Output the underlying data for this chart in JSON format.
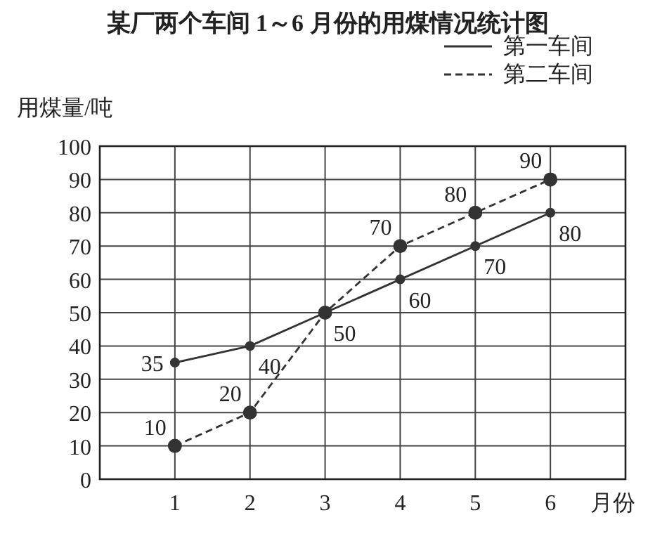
{
  "chart_data": {
    "type": "line",
    "title": "某厂两个车间 1～6 月份的用煤情况统计图",
    "xlabel": "月份",
    "ylabel": "用煤量/吨",
    "x": [
      1,
      2,
      3,
      4,
      5,
      6
    ],
    "xlim": [
      0,
      7
    ],
    "xticks": [
      1,
      2,
      3,
      4,
      5,
      6
    ],
    "ylim": [
      0,
      100
    ],
    "yticks": [
      0,
      10,
      20,
      30,
      40,
      50,
      60,
      70,
      80,
      90,
      100
    ],
    "grid": true,
    "legend": "top right",
    "marker": "circle",
    "series": [
      {
        "name": "第一车间",
        "color": "#333333",
        "line_style": "solid",
        "values": [
          35,
          40,
          50,
          60,
          70,
          80
        ],
        "value_labels": [
          "35",
          "40",
          "50",
          "60",
          "70",
          "80"
        ]
      },
      {
        "name": "第二车间",
        "color": "#333333",
        "line_style": "dashed",
        "values": [
          10,
          20,
          50,
          70,
          80,
          90
        ],
        "value_labels": [
          "10",
          "20",
          null,
          "70",
          "80",
          "90"
        ]
      }
    ]
  }
}
